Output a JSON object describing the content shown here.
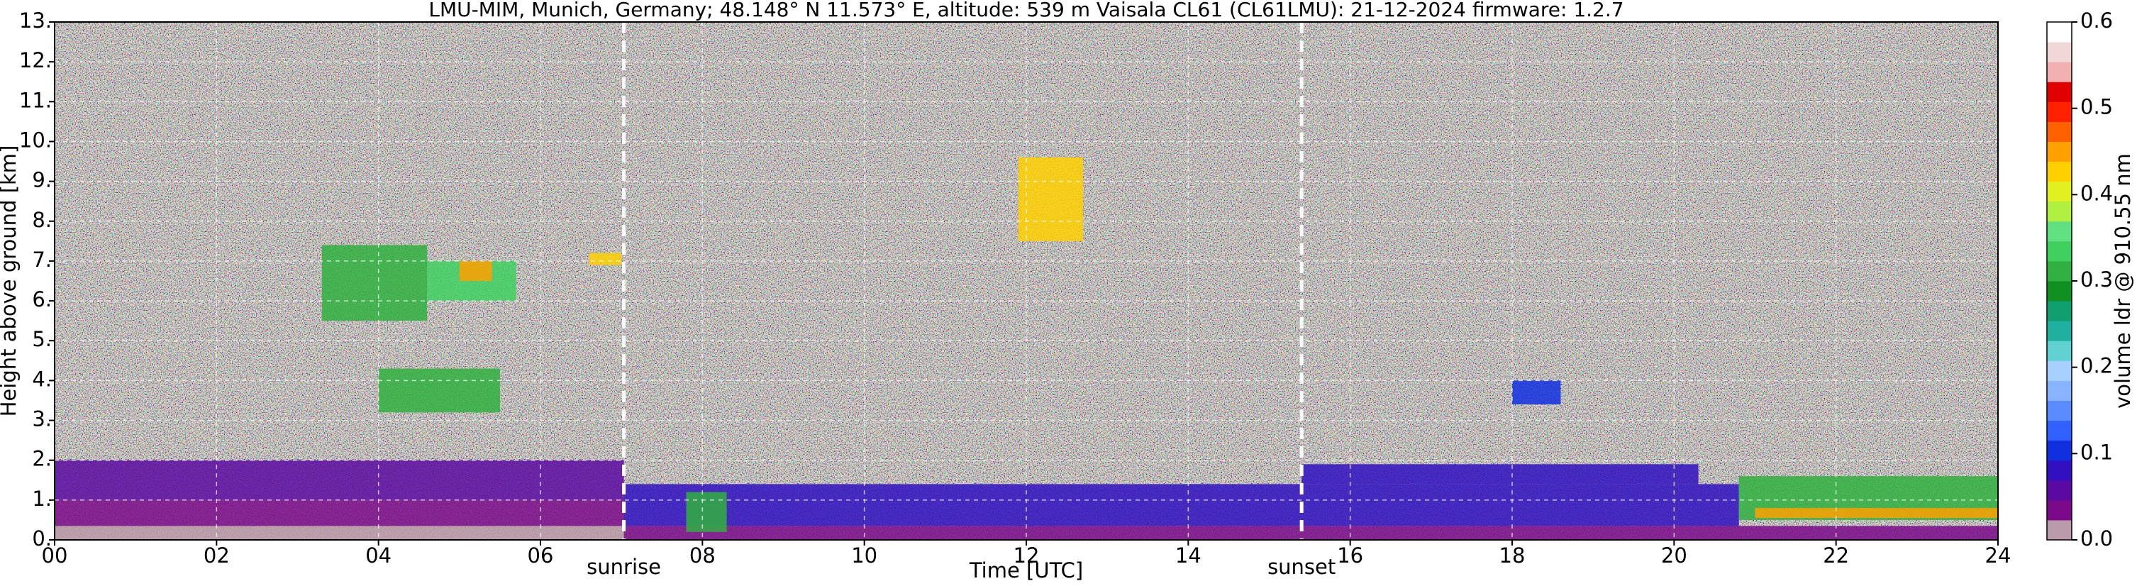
{
  "chart_data": {
    "type": "heatmap",
    "title": "LMU-MIM, Munich, Germany; 48.148° N 11.573° E, altitude: 539 m    Vaisala CL61 (CL61LMU): 21-12-2024    firmware: 1.2.7",
    "x_label": "Time [UTC]",
    "y_label": "Height above ground [km]",
    "colorbar_label": "volume ldr @ 910.55 nm",
    "xlim": [
      0,
      24
    ],
    "xticks": [
      {
        "value": 0,
        "label": "00"
      },
      {
        "value": 2,
        "label": "02"
      },
      {
        "value": 4,
        "label": "04"
      },
      {
        "value": 6,
        "label": "06"
      },
      {
        "value": 8,
        "label": "08"
      },
      10,
      12,
      14,
      16,
      18,
      20,
      22,
      24
    ],
    "ylim": [
      0,
      13
    ],
    "yticks": [
      {
        "value": 0,
        "label": "0."
      },
      {
        "value": 1,
        "label": "1."
      },
      {
        "value": 2,
        "label": "2."
      },
      {
        "value": 3,
        "label": "3."
      },
      {
        "value": 4,
        "label": "4."
      },
      {
        "value": 5,
        "label": "5."
      },
      {
        "value": 6,
        "label": "6."
      },
      {
        "value": 7,
        "label": "7."
      },
      {
        "value": 8,
        "label": "8."
      },
      {
        "value": 9,
        "label": "9."
      },
      {
        "value": 10,
        "label": "10."
      },
      {
        "value": 11,
        "label": "11."
      },
      {
        "value": 12,
        "label": "12."
      },
      {
        "value": 13,
        "label": "13."
      }
    ],
    "clim": [
      0,
      0.6
    ],
    "cticks": [
      {
        "value": 0,
        "label": "0.0"
      },
      0.1,
      0.2,
      0.3,
      0.4,
      0.5,
      0.6
    ],
    "colormap": [
      "#b89aa8",
      "#7a0a8a",
      "#5a0aa0",
      "#3010c0",
      "#1030e0",
      "#3060ff",
      "#5a8cff",
      "#88b4ff",
      "#a8d0ff",
      "#60d0d0",
      "#20b0a0",
      "#10a070",
      "#109020",
      "#30b040",
      "#40d060",
      "#60e080",
      "#b0f040",
      "#e0f020",
      "#ffd000",
      "#ffa000",
      "#ff6000",
      "#ff2000",
      "#e00000",
      "#f0b0b0",
      "#f0d8d8",
      "#ffffff"
    ],
    "grid": true,
    "annotations": [
      {
        "text": "sunrise",
        "x": 7.03
      },
      {
        "text": "sunset",
        "x": 15.4
      }
    ],
    "regions": [
      {
        "t": [
          0,
          7.03
        ],
        "h": [
          0,
          0.35
        ],
        "value": 0.005
      },
      {
        "t": [
          0,
          7.03
        ],
        "h": [
          0.35,
          1.0
        ],
        "value": 0.03
      },
      {
        "t": [
          0,
          7.03
        ],
        "h": [
          1.0,
          2.0
        ],
        "value": 0.06
      },
      {
        "t": [
          3.3,
          4.6
        ],
        "h": [
          5.5,
          7.4
        ],
        "value": 0.3
      },
      {
        "t": [
          4.6,
          5.7
        ],
        "h": [
          6.0,
          7.0
        ],
        "value": 0.33
      },
      {
        "t": [
          5.0,
          5.4
        ],
        "h": [
          6.5,
          7.0
        ],
        "value": 0.45
      },
      {
        "t": [
          4.0,
          5.5
        ],
        "h": [
          3.2,
          4.3
        ],
        "value": 0.3
      },
      {
        "t": [
          6.6,
          7.0
        ],
        "h": [
          6.9,
          7.2
        ],
        "value": 0.42
      },
      {
        "t": [
          11.9,
          12.7
        ],
        "h": [
          7.5,
          9.6
        ],
        "value": 0.42
      },
      {
        "t": [
          7.03,
          24
        ],
        "h": [
          0,
          0.35
        ],
        "value": 0.03
      },
      {
        "t": [
          7.03,
          20.8
        ],
        "h": [
          0.35,
          1.4
        ],
        "value": 0.08
      },
      {
        "t": [
          15.4,
          20.3
        ],
        "h": [
          1.4,
          1.9
        ],
        "value": 0.09
      },
      {
        "t": [
          7.8,
          8.3
        ],
        "h": [
          0.2,
          1.2
        ],
        "value": 0.32
      },
      {
        "t": [
          18.0,
          18.6
        ],
        "h": [
          3.4,
          4.0
        ],
        "value": 0.1
      },
      {
        "t": [
          20.8,
          24
        ],
        "h": [
          0.5,
          1.6
        ],
        "value": 0.3
      },
      {
        "t": [
          21.0,
          24
        ],
        "h": [
          0.55,
          0.8
        ],
        "value": 0.45
      }
    ]
  }
}
